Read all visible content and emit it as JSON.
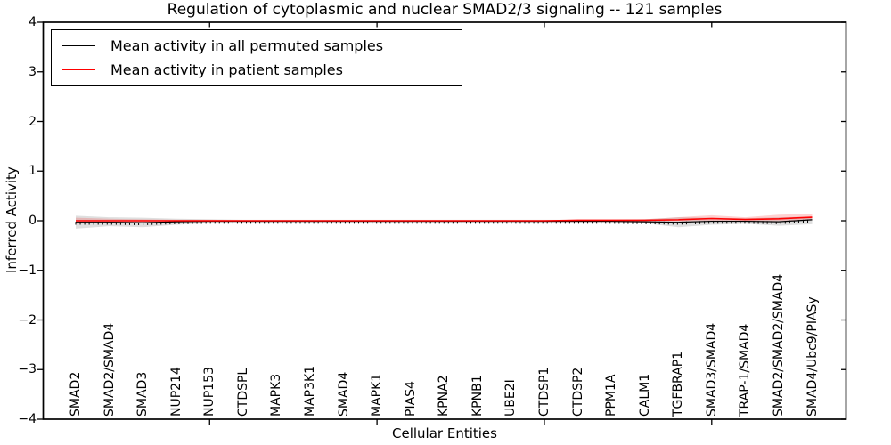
{
  "title": "Regulation of cytoplasmic and nuclear SMAD2/3 signaling -- 121 samples",
  "legend": {
    "items": [
      {
        "label": "Mean activity in all permuted samples",
        "color": "#000000"
      },
      {
        "label": "Mean activity in patient samples",
        "color": "#ff0000"
      }
    ]
  },
  "chart_data": {
    "type": "line",
    "title": "Regulation of cytoplasmic and nuclear SMAD2/3 signaling -- 121 samples",
    "xlabel": "Cellular Entities",
    "ylabel": "Inferred Activity",
    "ylim": [
      -4,
      4
    ],
    "yticks": [
      4,
      3,
      2,
      1,
      0,
      -1,
      -2,
      -3,
      -4
    ],
    "xtick_positions": [
      5,
      10,
      15,
      20
    ],
    "grid": false,
    "legend_position": "upper left",
    "categories": [
      "SMAD2",
      "SMAD2/SMAD4",
      "SMAD3",
      "NUP214",
      "NUP153",
      "CTDSPL",
      "MAPK3",
      "MAP3K1",
      "SMAD4",
      "MAPK1",
      "PIAS4",
      "KPNA2",
      "KPNB1",
      "UBE2I",
      "CTDSP1",
      "CTDSP2",
      "PPM1A",
      "CALM1",
      "TGFBRAP1",
      "SMAD3/SMAD4",
      "TRAP-1/SMAD4",
      "SMAD2/SMAD2/SMAD4",
      "SMAD4/Ubc9/PIASy"
    ],
    "series": [
      {
        "name": "Mean activity in all permuted samples",
        "color": "#000000",
        "line_width": 1.2,
        "marker": "vertical-tick",
        "values": [
          -0.03,
          -0.03,
          -0.04,
          -0.02,
          -0.01,
          -0.01,
          -0.01,
          -0.01,
          -0.01,
          -0.01,
          -0.01,
          -0.01,
          -0.01,
          -0.01,
          -0.01,
          -0.01,
          -0.01,
          -0.02,
          -0.03,
          -0.01,
          -0.01,
          -0.02,
          0.02
        ],
        "band": {
          "color": "#aaaaaa",
          "opacity": 0.38,
          "upper": [
            0.1,
            0.07,
            0.06,
            0.04,
            0.03,
            0.02,
            0.02,
            0.02,
            0.02,
            0.02,
            0.02,
            0.02,
            0.02,
            0.02,
            0.02,
            0.02,
            0.02,
            0.03,
            0.07,
            0.06,
            0.05,
            0.07,
            0.08
          ],
          "lower": [
            -0.16,
            -0.11,
            -0.13,
            -0.08,
            -0.05,
            -0.04,
            -0.04,
            -0.04,
            -0.04,
            -0.04,
            -0.04,
            -0.04,
            -0.04,
            -0.04,
            -0.04,
            -0.04,
            -0.04,
            -0.05,
            -0.13,
            -0.08,
            -0.06,
            -0.1,
            -0.07
          ]
        }
      },
      {
        "name": "Mean activity in patient samples",
        "color": "#ff0000",
        "line_width": 1.6,
        "marker": "none",
        "values": [
          0.0,
          0.0,
          0.0,
          0.0,
          0.0,
          0.0,
          0.0,
          0.0,
          0.0,
          0.0,
          0.0,
          0.0,
          0.0,
          0.0,
          0.0,
          0.01,
          0.01,
          0.01,
          0.02,
          0.045,
          0.025,
          0.04,
          0.07
        ],
        "band": {
          "color": "#ff0000",
          "opacity": 0.18,
          "upper": [
            0.06,
            0.04,
            0.03,
            0.02,
            0.02,
            0.01,
            0.01,
            0.01,
            0.01,
            0.01,
            0.01,
            0.01,
            0.01,
            0.01,
            0.01,
            0.02,
            0.02,
            0.03,
            0.07,
            0.11,
            0.07,
            0.12,
            0.14
          ],
          "lower": [
            -0.06,
            -0.04,
            -0.03,
            -0.02,
            -0.01,
            -0.01,
            -0.01,
            -0.01,
            -0.01,
            -0.01,
            -0.01,
            -0.01,
            -0.01,
            -0.01,
            -0.01,
            -0.005,
            -0.005,
            -0.005,
            -0.01,
            0.0,
            -0.01,
            -0.005,
            0.02
          ]
        }
      }
    ]
  }
}
